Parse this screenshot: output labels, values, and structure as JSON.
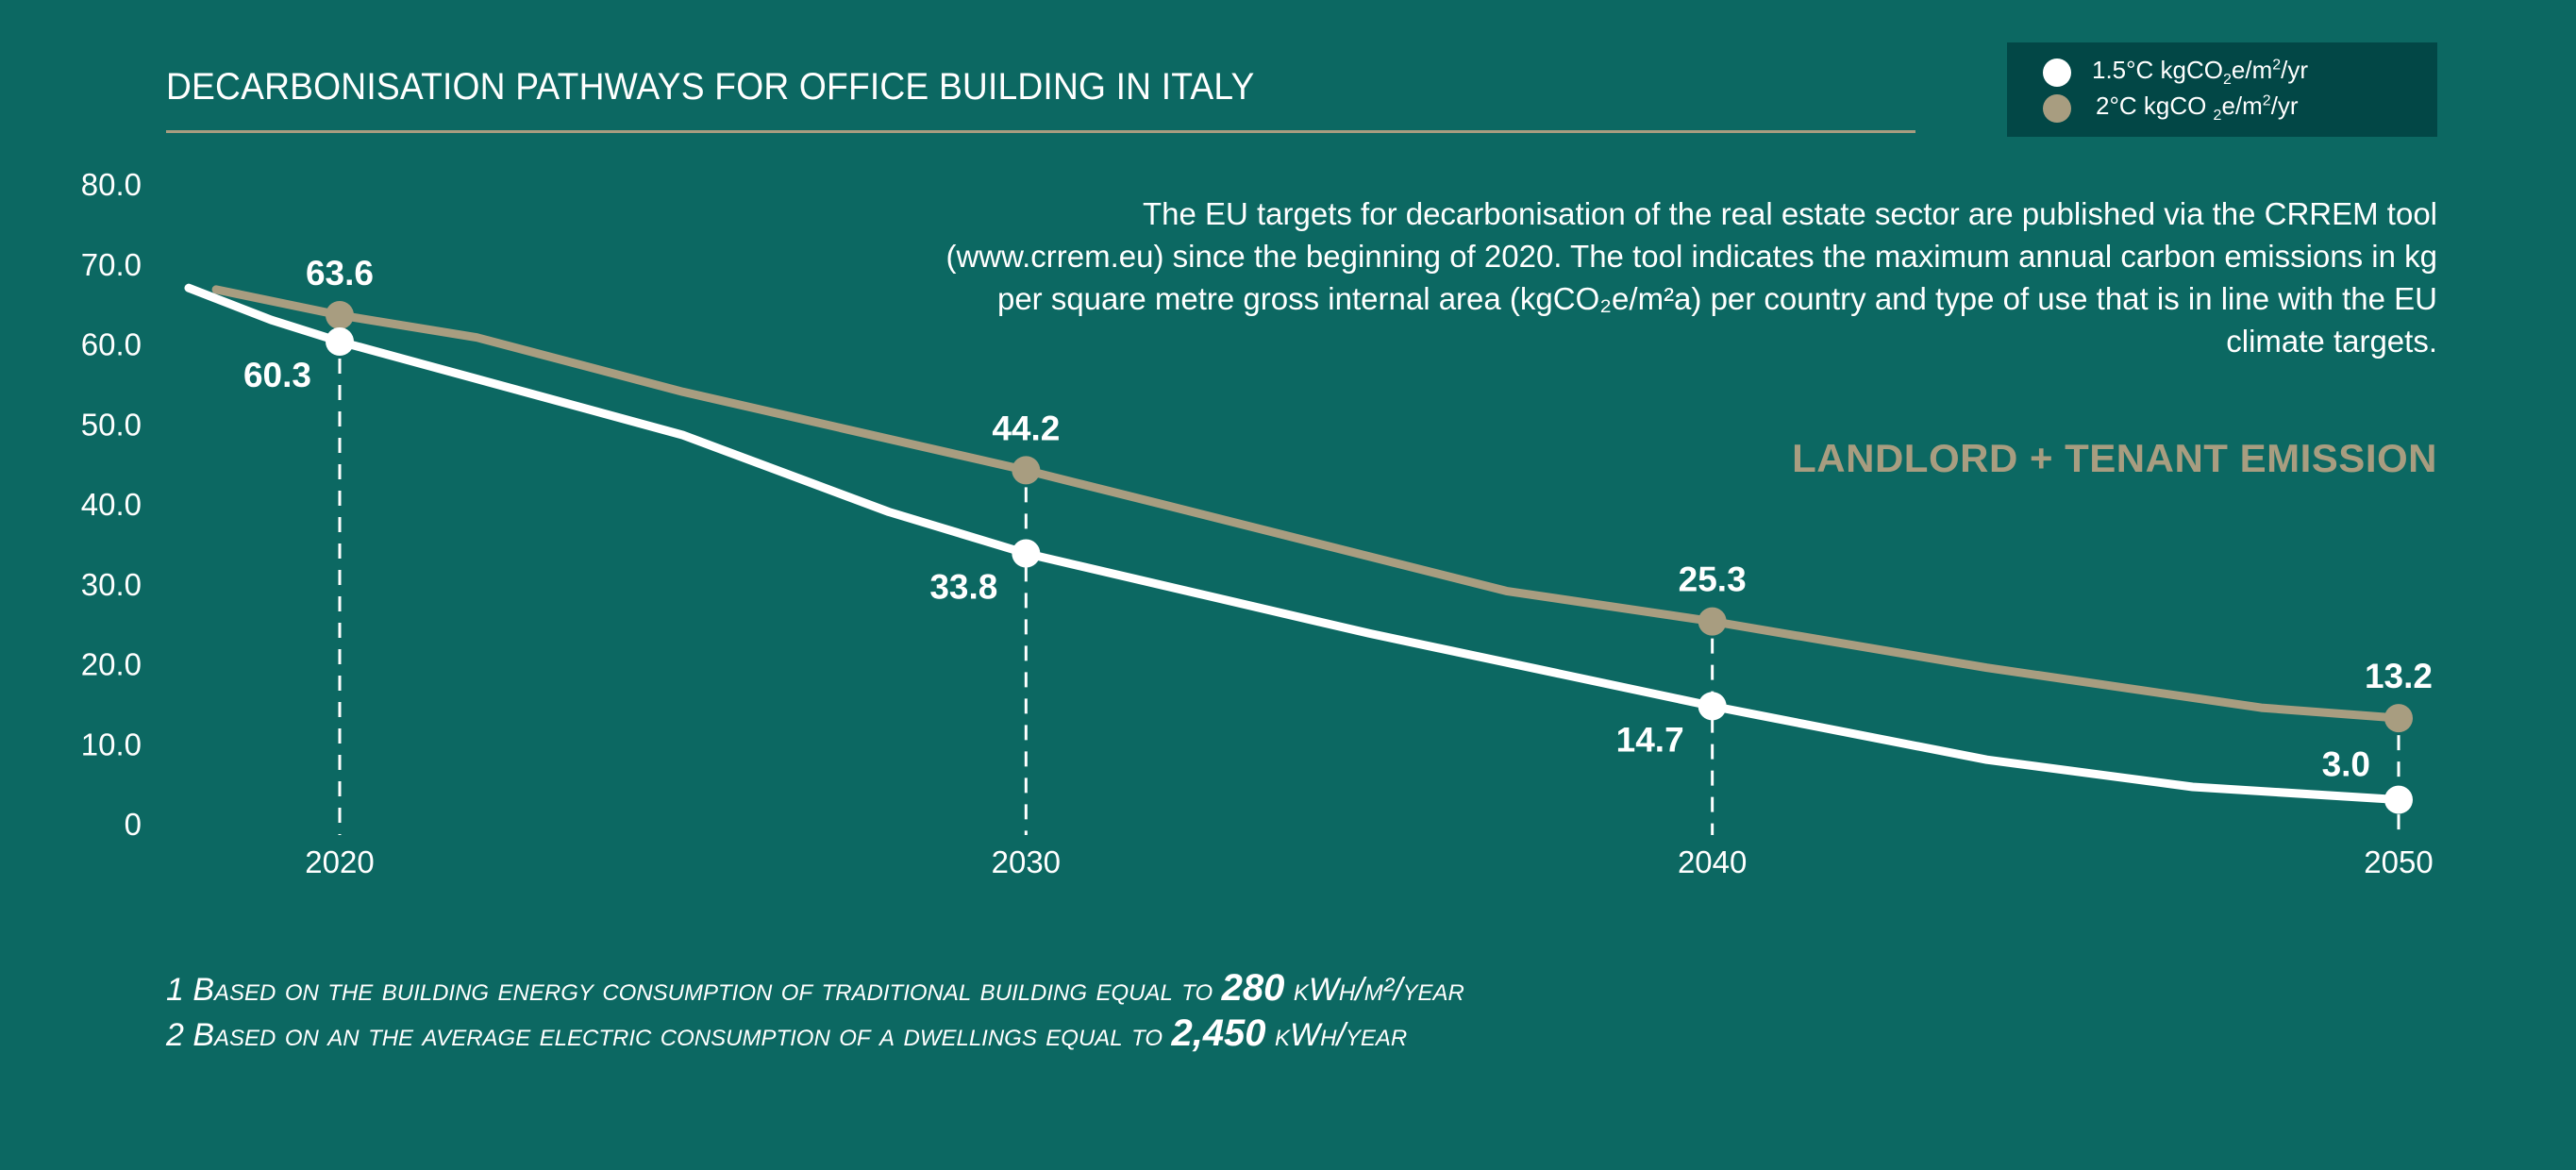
{
  "header": {
    "title": "DECARBONISATION PATHWAYS FOR OFFICE BUILDING IN ITALY"
  },
  "legend": {
    "items": [
      {
        "label_pre": "1.5°C kgCO",
        "sub": "2",
        "label_mid": "e/m",
        "sup": "2",
        "label_post": "/yr",
        "color": "#ffffff"
      },
      {
        "label_pre": "2°C kgCO ",
        "sub": "2",
        "label_mid": "e/m",
        "sup": "2",
        "label_post": "/yr",
        "color": "#a89d80"
      }
    ]
  },
  "description": "The EU targets for decarbonisation of the real estate sector are published via the CRREM tool (www.crrem.eu) since the beginning of 2020. The tool indicates the maximum annual carbon emissions in kg per square metre gross internal area (kgCO₂e/m²a) per country and type of use that is in line with the EU climate targets.",
  "section_title": "LANDLORD + TENANT EMISSION",
  "footnotes": [
    {
      "pre": "1 Based on the building energy consumption of traditional building equal to ",
      "num": "280",
      "post": " kWh/m²/year"
    },
    {
      "pre": "2 Based on an the average electric consumption of a dwellings equal to ",
      "num": "2,450",
      "post": " kWh/year"
    }
  ],
  "chart_data": {
    "type": "line",
    "title": "DECARBONISATION PATHWAYS FOR OFFICE BUILDING IN ITALY",
    "xlabel": "",
    "ylabel": "",
    "xlim": [
      2017.8,
      2050
    ],
    "ylim": [
      0,
      80
    ],
    "y_ticks": [
      0,
      10,
      20,
      30,
      40,
      50,
      60,
      70,
      80
    ],
    "y_tick_labels": [
      "0",
      "10.0",
      "20.0",
      "30.0",
      "40.0",
      "50.0",
      "60.0",
      "70.0",
      "80.0"
    ],
    "x_ticks": [
      2020,
      2030,
      2040,
      2050
    ],
    "x_tick_labels": [
      "2020",
      "2030",
      "2040",
      "2050"
    ],
    "grid": false,
    "legend_position": "top-right",
    "series": [
      {
        "name": "1.5°C kgCO2e/m2/yr",
        "color": "#ffffff",
        "x": [
          2017.8,
          2019,
          2020,
          2025,
          2028,
          2030,
          2035,
          2040,
          2044,
          2047,
          2050
        ],
        "y": [
          67.0,
          63.0,
          60.3,
          48.6,
          39.0,
          33.8,
          23.8,
          14.7,
          8.0,
          4.6,
          3.0
        ],
        "markers": [
          {
            "x": 2020,
            "y": 60.3,
            "label": "60.3"
          },
          {
            "x": 2030,
            "y": 33.8,
            "label": "33.8"
          },
          {
            "x": 2040,
            "y": 14.7,
            "label": "14.7"
          },
          {
            "x": 2050,
            "y": 3.0,
            "label": "3.0"
          }
        ]
      },
      {
        "name": "2°C kgCO2e/m2/yr",
        "color": "#a89d80",
        "x": [
          2018.2,
          2020,
          2022,
          2025,
          2030,
          2032,
          2037,
          2040,
          2044,
          2048,
          2050
        ],
        "y": [
          66.8,
          63.6,
          60.8,
          54.0,
          44.2,
          39.9,
          29.1,
          25.3,
          19.5,
          14.5,
          13.2
        ],
        "markers": [
          {
            "x": 2020,
            "y": 63.6,
            "label": "63.6"
          },
          {
            "x": 2030,
            "y": 44.2,
            "label": "44.2"
          },
          {
            "x": 2040,
            "y": 25.3,
            "label": "25.3"
          },
          {
            "x": 2050,
            "y": 13.2,
            "label": "13.2"
          }
        ]
      }
    ]
  }
}
